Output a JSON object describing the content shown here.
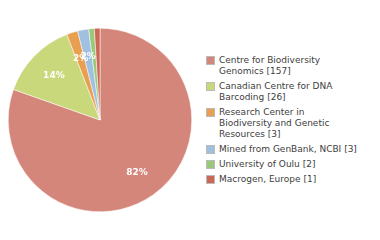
{
  "chart_data": {
    "type": "pie",
    "categories": [
      "Centre for Biodiversity\nGenomics [157]",
      "Canadian Centre for DNA\nBarcoding [26]",
      "Research Center in\nBiodiversity and Genetic\nResources [3]",
      "Mined from GenBank, NCBI [3]",
      "University of Oulu [2]",
      "Macrogen, Europe [1]"
    ],
    "values": [
      82,
      14,
      2,
      2,
      1,
      1
    ],
    "value_labels": [
      "82%",
      "14%",
      "2%",
      "2%",
      null,
      null
    ],
    "colors": [
      "#d4867a",
      "#c8d87a",
      "#e8a050",
      "#a0c0e0",
      "#98c878",
      "#cc6655"
    ],
    "data_labels": true,
    "legend": "right"
  }
}
